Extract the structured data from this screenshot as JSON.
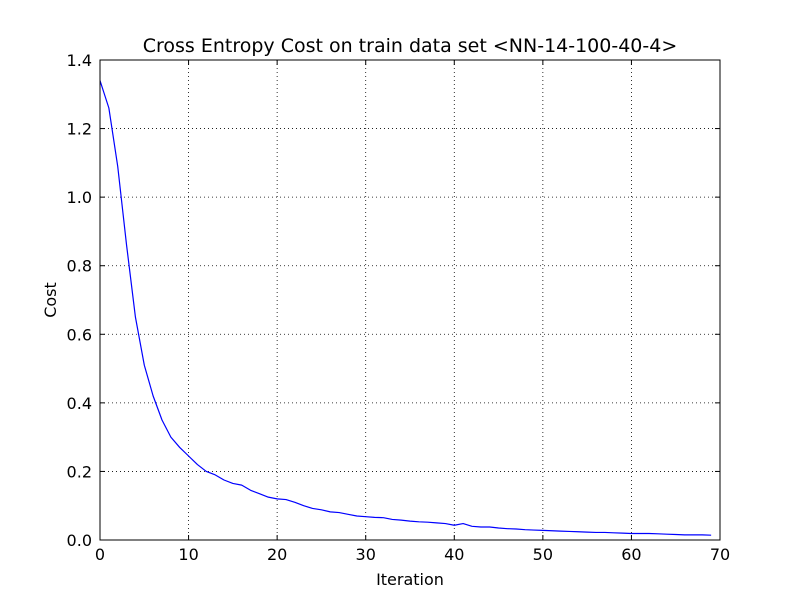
{
  "chart_data": {
    "type": "line",
    "title": "Cross Entropy Cost on train data set <NN-14-100-40-4>",
    "xlabel": "Iteration",
    "ylabel": "Cost",
    "xlim": [
      0,
      70
    ],
    "ylim": [
      0.0,
      1.4
    ],
    "xticks": [
      0,
      10,
      20,
      30,
      40,
      50,
      60,
      70
    ],
    "xtick_labels": [
      "0",
      "10",
      "20",
      "30",
      "40",
      "50",
      "60",
      "70"
    ],
    "yticks": [
      0.0,
      0.2,
      0.4,
      0.6,
      0.8,
      1.0,
      1.2,
      1.4
    ],
    "ytick_labels": [
      "0.0",
      "0.2",
      "0.4",
      "0.6",
      "0.8",
      "1.0",
      "1.2",
      "1.4"
    ],
    "grid": true,
    "series": [
      {
        "color": "#0000ff",
        "x": [
          0,
          1,
          2,
          3,
          4,
          5,
          6,
          7,
          8,
          9,
          10,
          11,
          12,
          13,
          14,
          15,
          16,
          17,
          18,
          19,
          20,
          21,
          22,
          23,
          24,
          25,
          26,
          27,
          28,
          29,
          30,
          31,
          32,
          33,
          34,
          35,
          36,
          37,
          38,
          39,
          40,
          41,
          42,
          43,
          44,
          45,
          46,
          47,
          48,
          49,
          50,
          51,
          52,
          53,
          54,
          55,
          56,
          57,
          58,
          59,
          60,
          61,
          62,
          63,
          64,
          65,
          66,
          67,
          68,
          69
        ],
        "y": [
          1.34,
          1.26,
          1.09,
          0.86,
          0.65,
          0.51,
          0.42,
          0.35,
          0.3,
          0.27,
          0.245,
          0.22,
          0.2,
          0.19,
          0.175,
          0.165,
          0.16,
          0.145,
          0.135,
          0.125,
          0.12,
          0.118,
          0.11,
          0.1,
          0.092,
          0.088,
          0.082,
          0.08,
          0.075,
          0.07,
          0.068,
          0.066,
          0.065,
          0.06,
          0.058,
          0.055,
          0.053,
          0.052,
          0.05,
          0.048,
          0.043,
          0.048,
          0.04,
          0.038,
          0.038,
          0.035,
          0.033,
          0.032,
          0.03,
          0.029,
          0.028,
          0.027,
          0.026,
          0.025,
          0.024,
          0.023,
          0.022,
          0.022,
          0.021,
          0.02,
          0.019,
          0.019,
          0.019,
          0.018,
          0.017,
          0.016,
          0.015,
          0.015,
          0.015,
          0.014
        ]
      }
    ]
  }
}
